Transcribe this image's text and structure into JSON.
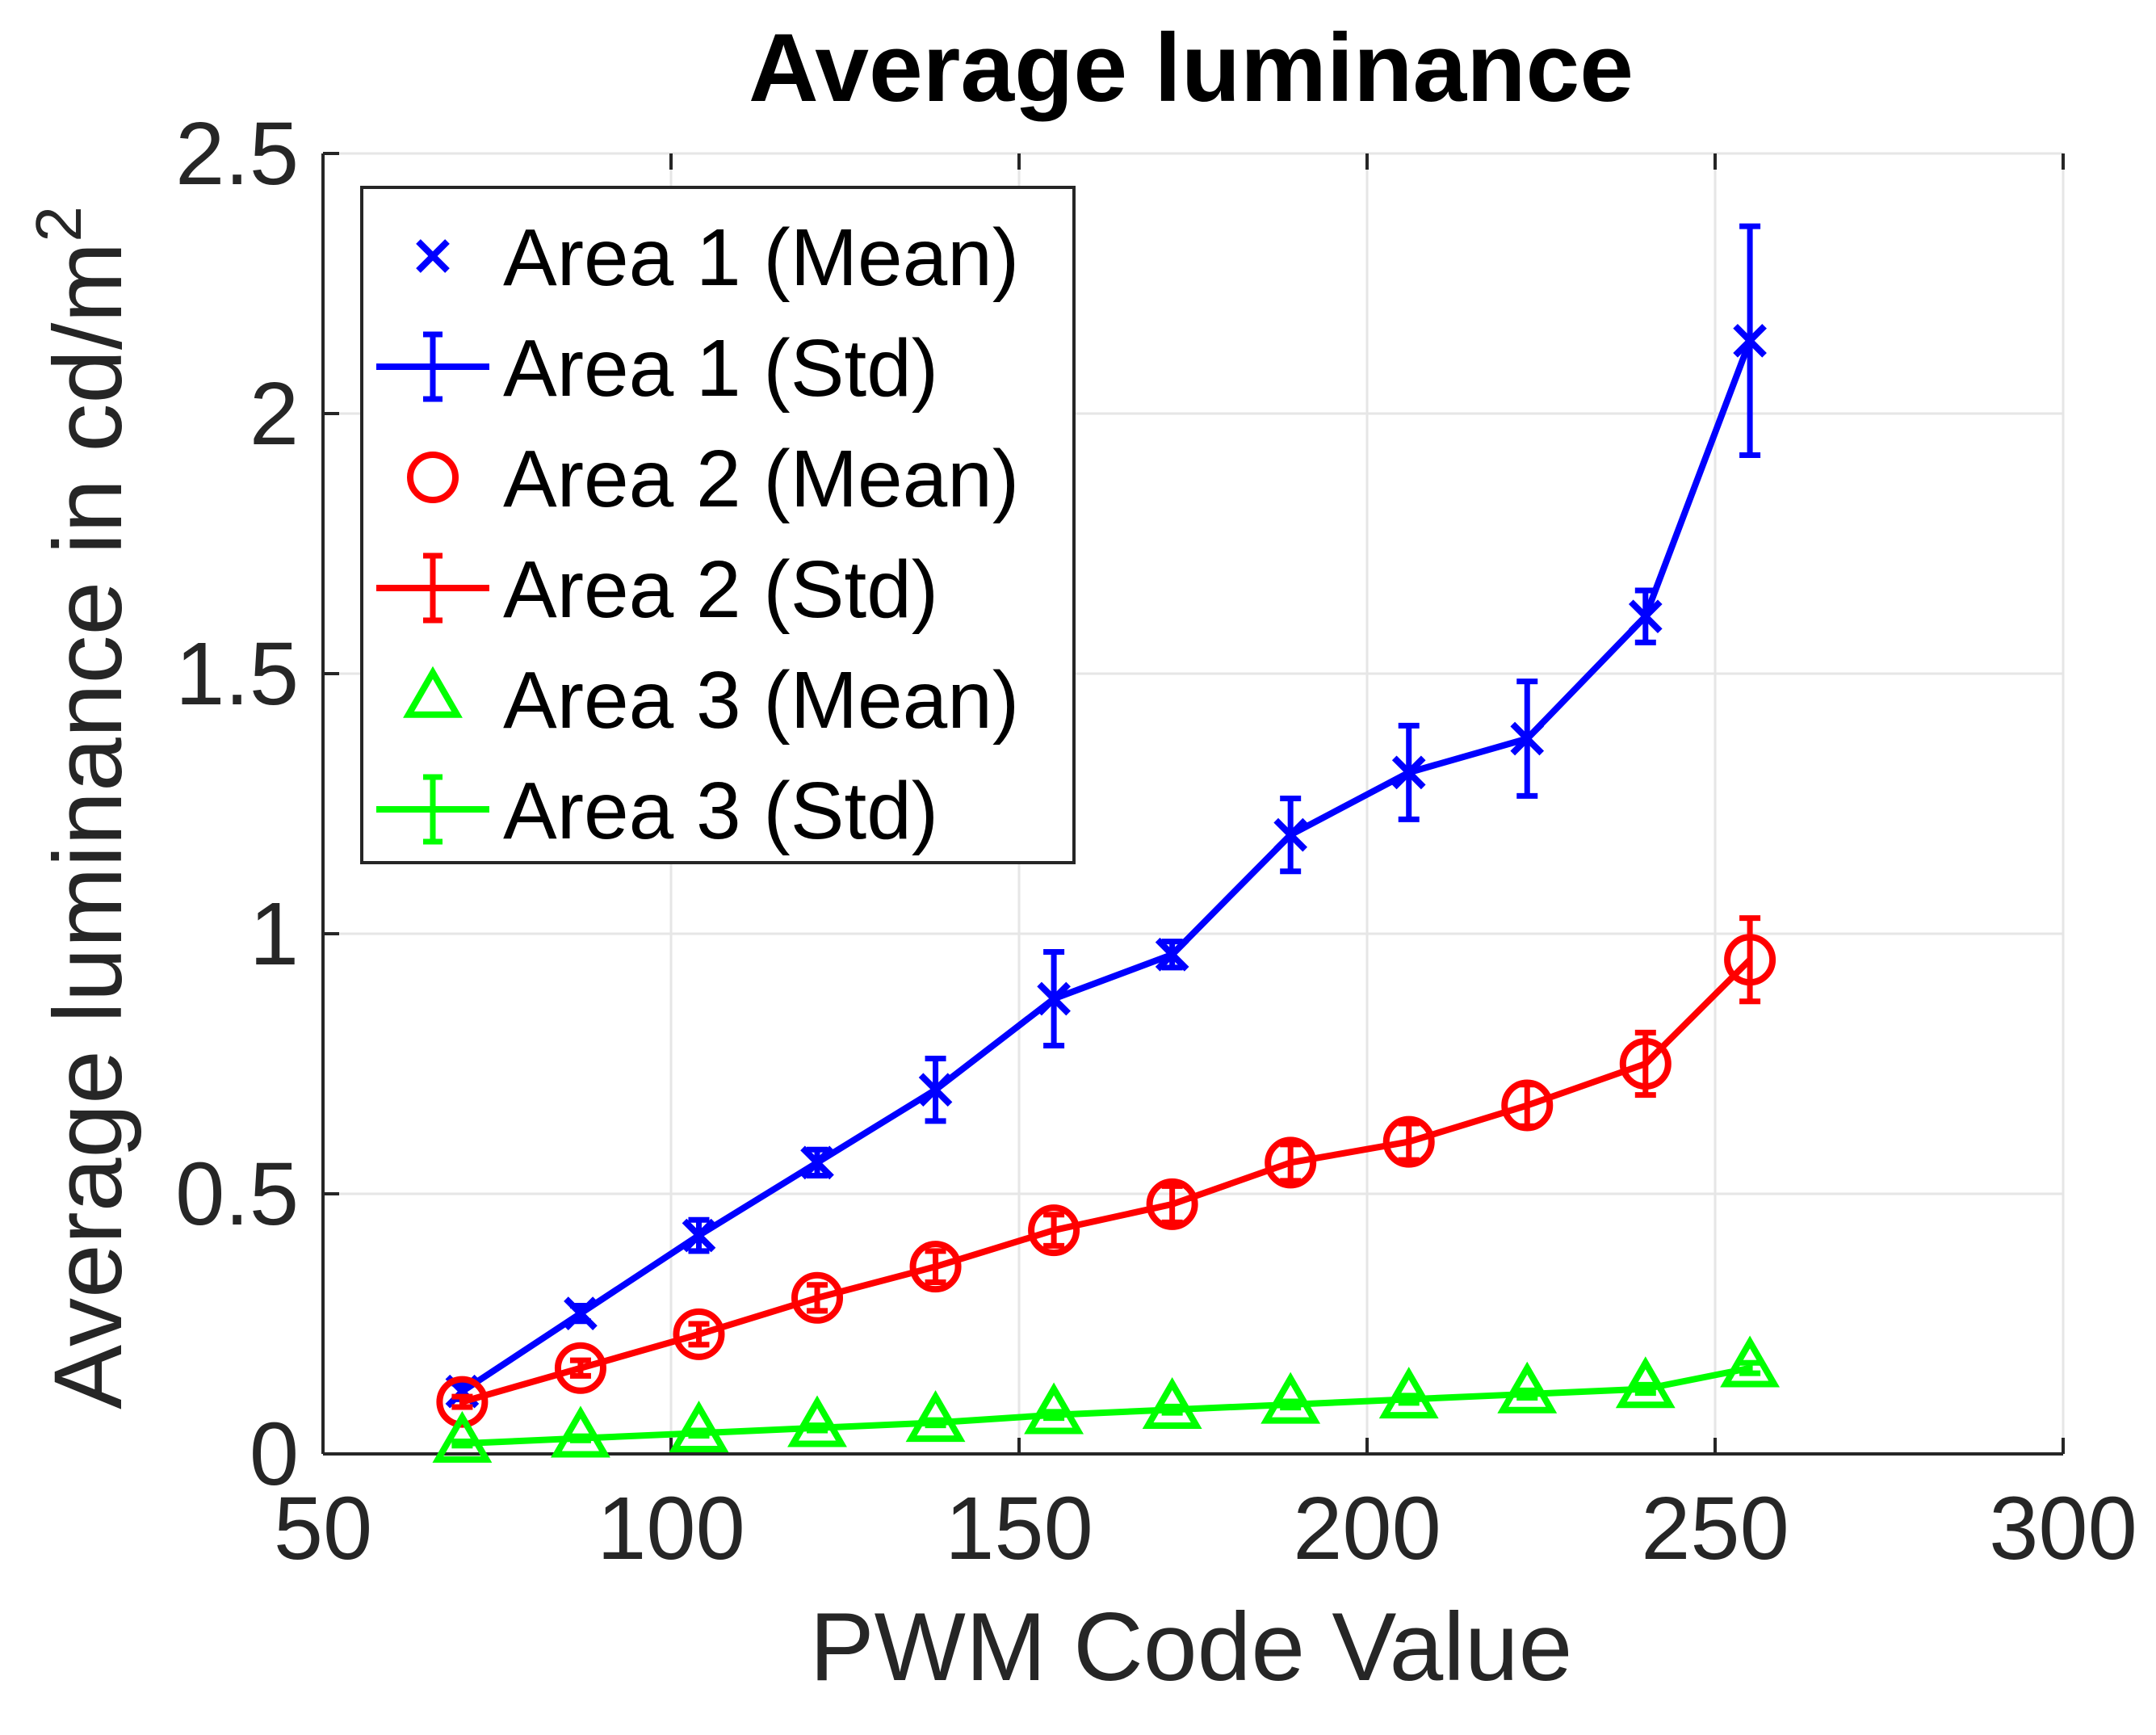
{
  "chart_data": {
    "type": "line",
    "title": "Average luminance",
    "xlabel": "PWM Code Value",
    "ylabel_main": "Average luminance in cd/m",
    "ylabel_sup": "2",
    "xlim": [
      50,
      300
    ],
    "ylim": [
      0,
      2.5
    ],
    "xticks": [
      50,
      100,
      150,
      200,
      250,
      300
    ],
    "yticks": [
      0,
      0.5,
      1,
      1.5,
      2,
      2.5
    ],
    "xtick_labels": [
      "50",
      "100",
      "150",
      "200",
      "250",
      "300"
    ],
    "ytick_labels": [
      "0",
      "0.5",
      "1",
      "1.5",
      "2",
      "2.5"
    ],
    "grid": true,
    "legend_position": "top-left",
    "x": [
      70,
      87,
      104,
      121,
      138,
      155,
      172,
      189,
      206,
      223,
      240,
      255
    ],
    "series": [
      {
        "name": "Area 1",
        "color": "#0000ff",
        "marker": "x",
        "values": [
          0.12,
          0.27,
          0.42,
          0.56,
          0.7,
          0.875,
          0.96,
          1.19,
          1.31,
          1.375,
          1.61,
          2.14
        ],
        "std": [
          0.015,
          0.015,
          0.03,
          0.025,
          0.06,
          0.09,
          0.025,
          0.07,
          0.09,
          0.11,
          0.05,
          0.22
        ]
      },
      {
        "name": "Area 2",
        "color": "#ff0000",
        "marker": "o",
        "values": [
          0.1,
          0.165,
          0.23,
          0.3,
          0.36,
          0.43,
          0.48,
          0.56,
          0.6,
          0.67,
          0.75,
          0.95
        ],
        "std": [
          0.01,
          0.015,
          0.02,
          0.025,
          0.03,
          0.03,
          0.035,
          0.035,
          0.035,
          0.04,
          0.06,
          0.08
        ]
      },
      {
        "name": "Area 3",
        "color": "#00ff00",
        "marker": "triangle",
        "values": [
          0.02,
          0.03,
          0.04,
          0.05,
          0.06,
          0.075,
          0.085,
          0.095,
          0.105,
          0.115,
          0.125,
          0.165
        ],
        "std": [
          0.004,
          0.004,
          0.005,
          0.005,
          0.005,
          0.006,
          0.006,
          0.006,
          0.007,
          0.007,
          0.008,
          0.01
        ]
      }
    ],
    "legend": [
      {
        "label": "Area 1 (Mean)",
        "color": "#0000ff",
        "kind": "x"
      },
      {
        "label": "Area 1 (Std)",
        "color": "#0000ff",
        "kind": "err"
      },
      {
        "label": "Area 2 (Mean)",
        "color": "#ff0000",
        "kind": "o"
      },
      {
        "label": "Area 2 (Std)",
        "color": "#ff0000",
        "kind": "err"
      },
      {
        "label": "Area 3 (Mean)",
        "color": "#00ff00",
        "kind": "triangle"
      },
      {
        "label": "Area 3 (Std)",
        "color": "#00ff00",
        "kind": "err"
      }
    ]
  }
}
